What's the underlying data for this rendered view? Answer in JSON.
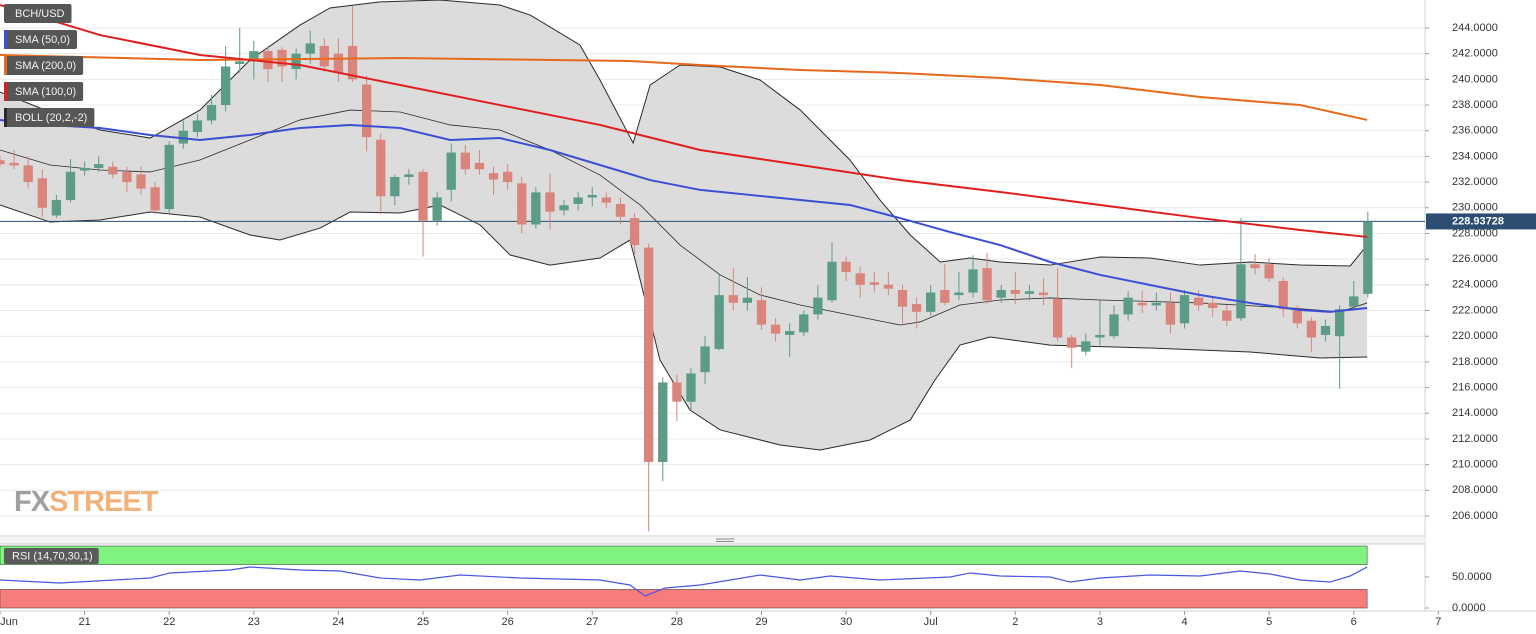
{
  "chart_data": [
    {
      "type": "candlestick",
      "title": "BCH/USD",
      "x": [
        0,
        4,
        8,
        12,
        16,
        20,
        24,
        28,
        32,
        36,
        40,
        44,
        48,
        52,
        56,
        60,
        64,
        68,
        72,
        76,
        80,
        84,
        88,
        92,
        96,
        100,
        104,
        108,
        112,
        116,
        120,
        124,
        128,
        132,
        136,
        140,
        144,
        148,
        152,
        156,
        160,
        164,
        168,
        172,
        176,
        180,
        184,
        188,
        192,
        196,
        200,
        204,
        208,
        212,
        216,
        220,
        224,
        228,
        232,
        236,
        240,
        244,
        248,
        252,
        256,
        260,
        264,
        268,
        272,
        276,
        280,
        284,
        288,
        292,
        296,
        300,
        304,
        308,
        312,
        316,
        320,
        324,
        328,
        332,
        336,
        340,
        344,
        348,
        352,
        356,
        360,
        364,
        368,
        372,
        376,
        380,
        384,
        388
      ],
      "open": [
        233.7,
        233.5,
        233.3,
        232.3,
        229.4,
        230.6,
        232.9,
        233.1,
        233.2,
        232.8,
        232.6,
        231.6,
        229.9,
        235.0,
        235.9,
        236.8,
        238.0,
        241.2,
        241.4,
        242.2,
        242.3,
        240.8,
        242.0,
        242.6,
        242.0,
        242.6,
        239.6,
        235.3,
        230.9,
        232.4,
        232.8,
        229.0,
        231.4,
        234.3,
        233.5,
        232.7,
        232.8,
        231.9,
        228.7,
        231.2,
        229.8,
        230.3,
        230.8,
        230.8,
        230.3,
        229.2,
        226.9,
        210.2,
        216.4,
        214.9,
        217.2,
        219.0,
        223.2,
        222.6,
        222.8,
        220.9,
        220.1,
        220.3,
        221.7,
        222.8,
        225.8,
        224.9,
        224.2,
        224.0,
        223.6,
        222.5,
        221.9,
        223.6,
        223.2,
        223.4,
        225.3,
        223.0,
        223.6,
        223.3,
        223.4,
        222.9,
        219.9,
        218.8,
        219.9,
        220.0,
        221.7,
        222.6,
        222.4,
        222.6,
        221.0,
        223.0,
        222.6,
        222.0,
        221.4,
        225.6,
        225.6,
        224.3,
        222.0,
        221.2,
        220.1,
        220.0,
        222.3,
        223.3
      ],
      "high": [
        234.0,
        234.5,
        234.0,
        233.0,
        231.0,
        233.8,
        233.6,
        234.0,
        233.6,
        233.2,
        233.2,
        232.0,
        235.2,
        236.8,
        237.3,
        238.8,
        242.6,
        244.0,
        243.0,
        242.6,
        242.5,
        242.4,
        243.8,
        243.2,
        243.2,
        245.7,
        240.3,
        235.8,
        232.6,
        233.0,
        233.0,
        231.2,
        235.0,
        234.9,
        234.5,
        233.2,
        233.4,
        232.4,
        231.6,
        232.7,
        230.6,
        231.2,
        231.6,
        231.2,
        230.8,
        229.6,
        227.2,
        216.8,
        217.0,
        217.5,
        220.0,
        224.8,
        225.3,
        224.6,
        223.8,
        221.4,
        221.0,
        222.0,
        224.0,
        227.3,
        226.2,
        225.4,
        225.0,
        225.0,
        224.0,
        223.0,
        224.0,
        225.6,
        225.0,
        226.3,
        226.5,
        224.0,
        225.0,
        224.0,
        224.5,
        225.3,
        220.1,
        220.2,
        222.8,
        222.4,
        223.5,
        223.5,
        223.4,
        223.4,
        223.6,
        223.6,
        223.0,
        222.4,
        229.2,
        226.4,
        226.1,
        224.6,
        222.4,
        221.5,
        221.3,
        222.4,
        224.3,
        229.7
      ],
      "low": [
        233.2,
        233.0,
        231.5,
        229.3,
        229.2,
        230.4,
        232.5,
        232.8,
        232.3,
        231.2,
        231.0,
        229.5,
        229.6,
        234.6,
        235.5,
        236.5,
        237.5,
        240.5,
        240.0,
        239.8,
        239.8,
        240.0,
        241.2,
        240.6,
        239.8,
        239.8,
        234.4,
        229.5,
        230.2,
        231.8,
        226.2,
        228.6,
        230.5,
        232.6,
        232.6,
        231.0,
        231.4,
        228.0,
        228.4,
        228.3,
        229.4,
        229.8,
        230.1,
        230.0,
        228.7,
        226.4,
        204.8,
        208.7,
        213.4,
        214.2,
        216.3,
        218.9,
        222.0,
        222.0,
        220.5,
        219.6,
        218.4,
        220.0,
        221.3,
        222.6,
        224.3,
        223.0,
        223.4,
        223.2,
        221.0,
        220.6,
        221.6,
        222.4,
        222.8,
        223.0,
        222.5,
        222.6,
        222.5,
        222.8,
        222.4,
        219.6,
        217.5,
        218.5,
        219.3,
        219.8,
        221.2,
        221.8,
        222.0,
        220.2,
        220.6,
        222.0,
        221.5,
        220.8,
        221.2,
        224.8,
        224.2,
        221.5,
        220.6,
        218.8,
        219.6,
        215.9,
        222.0,
        223.0
      ],
      "close": [
        233.4,
        233.3,
        232.0,
        230.0,
        230.6,
        232.8,
        233.1,
        233.4,
        232.6,
        232.0,
        231.5,
        229.8,
        234.9,
        236.0,
        236.8,
        238.0,
        241.0,
        241.4,
        242.2,
        240.8,
        241.0,
        242.0,
        242.8,
        241.0,
        240.5,
        240.0,
        235.5,
        230.9,
        232.4,
        232.6,
        229.0,
        230.8,
        234.3,
        233.0,
        233.0,
        232.2,
        232.0,
        228.7,
        231.2,
        229.7,
        230.2,
        230.8,
        231.0,
        230.4,
        229.3,
        227.1,
        210.2,
        216.4,
        214.9,
        217.1,
        219.2,
        223.2,
        222.6,
        223.0,
        220.9,
        220.2,
        220.4,
        221.7,
        223.0,
        225.8,
        225.0,
        224.0,
        224.0,
        223.7,
        222.3,
        221.9,
        223.4,
        222.6,
        223.4,
        225.2,
        222.8,
        223.6,
        223.3,
        223.5,
        223.2,
        219.9,
        219.1,
        219.6,
        220.1,
        221.7,
        223.0,
        222.4,
        222.6,
        220.9,
        223.2,
        222.4,
        222.2,
        221.2,
        225.6,
        225.3,
        224.5,
        222.1,
        221.0,
        219.9,
        220.8,
        222.1,
        223.1,
        228.93728
      ],
      "up_color": "#5c9b85",
      "down_color": "#d9857b",
      "xlim": [
        0,
        435.7
      ],
      "ylim": [
        204.52,
        246.18
      ],
      "yticks": [
        {
          "value": 206,
          "label": "206.0000"
        },
        {
          "value": 208,
          "label": "208.0000"
        },
        {
          "value": 210,
          "label": "210.0000"
        },
        {
          "value": 212,
          "label": "212.0000"
        },
        {
          "value": 214,
          "label": "214.0000"
        },
        {
          "value": 216,
          "label": "216.0000"
        },
        {
          "value": 218,
          "label": "218.0000"
        },
        {
          "value": 220,
          "label": "220.0000"
        },
        {
          "value": 222,
          "label": "222.0000"
        },
        {
          "value": 224,
          "label": "224.0000"
        },
        {
          "value": 226,
          "label": "226.0000"
        },
        {
          "value": 228,
          "label": "228.0000"
        },
        {
          "value": 230,
          "label": "230.0000"
        },
        {
          "value": 232,
          "label": "232.0000"
        },
        {
          "value": 234,
          "label": "234.0000"
        },
        {
          "value": 236,
          "label": "236.0000"
        },
        {
          "value": 238,
          "label": "238.0000"
        },
        {
          "value": 240,
          "label": "240.0000"
        },
        {
          "value": 242,
          "label": "242.0000"
        },
        {
          "value": 244,
          "label": "244.0000"
        }
      ],
      "grid": true,
      "last_price": 228.93728,
      "overlays": [
        {
          "name": "SMA (50,0)",
          "color": "#3a4fd6",
          "x": [
            0,
            14.2,
            28.4,
            42.6,
            56.7,
            70.9,
            85.1,
            99.3,
            113.5,
            127.7,
            141.8,
            156.0,
            170.2,
            184.4,
            198.6,
            212.8,
            227.0,
            241.1,
            255.3,
            269.5,
            283.7,
            297.9,
            312.1,
            326.2,
            340.4,
            354.6,
            368.8,
            377.3,
            387.8
          ],
          "values": [
            236.84,
            236.45,
            236.21,
            235.67,
            235.28,
            235.67,
            236.21,
            236.45,
            236.21,
            235.28,
            235.43,
            234.5,
            233.33,
            232.16,
            231.39,
            231.0,
            230.61,
            230.22,
            229.2,
            228.11,
            227.1,
            225.78,
            224.77,
            223.99,
            223.21,
            222.59,
            222.04,
            221.89,
            222.2
          ]
        },
        {
          "name": "SMA (200,0)",
          "color": "#e8691c",
          "x": [
            0,
            56.7,
            113.5,
            178.7,
            198.6,
            227.0,
            255.3,
            283.7,
            312.1,
            340.4,
            368.8,
            387.8
          ],
          "values": [
            241.9,
            241.51,
            241.66,
            241.43,
            241.12,
            240.73,
            240.5,
            240.11,
            239.56,
            238.63,
            238.0,
            236.84
          ]
        },
        {
          "name": "SMA (100,0)",
          "color": "#e01e1e",
          "x": [
            0,
            28.4,
            56.7,
            85.1,
            113.5,
            141.8,
            170.2,
            198.6,
            227.0,
            255.3,
            283.7,
            312.1,
            340.4,
            368.8,
            387.8
          ],
          "values": [
            245.79,
            243.45,
            241.9,
            241.12,
            239.56,
            238.0,
            236.45,
            234.5,
            233.33,
            232.16,
            231.23,
            230.22,
            229.2,
            228.27,
            227.73
          ]
        }
      ],
      "bollinger": {
        "name": "BOLL (20,2,-2)",
        "color": "#2a2a2a",
        "fill": "#d6d6d6",
        "upper": {
          "x": [
            0,
            14.2,
            28.4,
            42.6,
            56.7,
            70.9,
            85.1,
            93.6,
            107.8,
            124.8,
            141.8,
            150.4,
            164.5,
            170.2,
            179.6,
            184.4,
            192.9,
            204.3,
            215.6,
            227.0,
            241.1,
            249.6,
            258.2,
            266.7,
            275.2,
            283.7,
            297.9,
            312.1,
            326.2,
            340.4,
            354.6,
            368.8,
            383.0,
            387.8
          ],
          "values": [
            239.02,
            237.46,
            236.06,
            235.43,
            237.61,
            241.51,
            244.23,
            245.56,
            246.03,
            246.18,
            245.79,
            245.01,
            242.68,
            239.95,
            235.04,
            239.56,
            241.12,
            240.96,
            239.95,
            237.61,
            233.72,
            230.61,
            227.88,
            225.78,
            226.09,
            225.78,
            225.54,
            226.17,
            226.09,
            225.54,
            225.78,
            225.54,
            225.47,
            227.1
          ]
        },
        "middle": {
          "x": [
            0,
            14.2,
            28.4,
            42.6,
            56.7,
            70.9,
            85.1,
            99.3,
            113.5,
            127.7,
            141.8,
            156.0,
            170.2,
            181.6,
            192.9,
            204.3,
            215.6,
            227.0,
            241.1,
            255.3,
            261.0,
            272.3,
            283.7,
            297.9,
            312.1,
            340.4,
            366.0,
            380.1,
            387.8
          ],
          "values": [
            234.5,
            233.33,
            232.94,
            232.79,
            233.72,
            235.28,
            236.84,
            237.61,
            237.46,
            236.45,
            236.06,
            234.5,
            232.55,
            230.22,
            227.1,
            224.77,
            223.21,
            222.43,
            221.65,
            220.87,
            221.11,
            222.43,
            222.82,
            222.98,
            222.82,
            222.59,
            222.2,
            221.89,
            222.59
          ]
        },
        "lower": {
          "x": [
            0,
            14.2,
            28.4,
            42.6,
            56.7,
            70.9,
            79.4,
            90.8,
            99.3,
            113.5,
            124.8,
            136.2,
            144.7,
            156.0,
            170.2,
            178.7,
            181.6,
            187.2,
            195.7,
            204.3,
            221.3,
            232.6,
            246.8,
            258.2,
            265.2,
            272.3,
            280.9,
            297.9,
            326.2,
            354.6,
            374.5,
            387.8
          ],
          "values": [
            230.22,
            228.89,
            229.05,
            229.67,
            229.28,
            227.88,
            227.49,
            228.42,
            229.67,
            229.59,
            230.22,
            228.66,
            226.32,
            225.54,
            226.09,
            227.49,
            224.38,
            218.15,
            214.25,
            212.7,
            211.53,
            211.14,
            211.92,
            213.47,
            216.59,
            219.31,
            219.94,
            219.31,
            219.08,
            218.77,
            218.3,
            218.38
          ]
        }
      },
      "watermark": [
        "FX",
        "STREET"
      ]
    },
    {
      "type": "line",
      "title": "RSI (14,70,30,1)",
      "color": "#4658e0",
      "x": [
        0,
        17.0,
        42.6,
        48.2,
        65.2,
        70.9,
        85.1,
        96.5,
        107.8,
        119.1,
        130.5,
        147.5,
        170.2,
        178.7,
        183.0,
        188.7,
        198.6,
        215.6,
        227.0,
        235.5,
        249.6,
        269.5,
        275.2,
        283.7,
        297.9,
        303.5,
        312.1,
        326.2,
        340.4,
        351.8,
        360.3,
        368.8,
        377.3,
        383.0,
        387.8
      ],
      "values": [
        45.2,
        40.3,
        48.4,
        56.5,
        61.3,
        66.1,
        61.3,
        59.7,
        48.4,
        45.2,
        53.2,
        48.4,
        45.2,
        37.1,
        19.4,
        32.3,
        37.1,
        53.2,
        45.2,
        51.6,
        45.2,
        50.0,
        56.5,
        51.6,
        50.0,
        41.9,
        48.4,
        53.2,
        51.6,
        59.7,
        54.8,
        45.2,
        41.9,
        51.6,
        66.1
      ],
      "xlim": [
        0,
        435.7
      ],
      "xticks": [
        {
          "value": 0,
          "label": "Jun"
        },
        {
          "value": 24,
          "label": "21"
        },
        {
          "value": 48,
          "label": "22"
        },
        {
          "value": 72,
          "label": "23"
        },
        {
          "value": 96,
          "label": "24"
        },
        {
          "value": 120,
          "label": "25"
        },
        {
          "value": 144,
          "label": "26"
        },
        {
          "value": 168,
          "label": "27"
        },
        {
          "value": 192,
          "label": "28"
        },
        {
          "value": 216,
          "label": "29"
        },
        {
          "value": 240,
          "label": "30"
        },
        {
          "value": 264,
          "label": "Jul"
        },
        {
          "value": 288,
          "label": "2"
        },
        {
          "value": 312,
          "label": "3"
        },
        {
          "value": 336,
          "label": "4"
        },
        {
          "value": 360,
          "label": "5"
        },
        {
          "value": 384,
          "label": "6"
        },
        {
          "value": 408,
          "label": "7"
        }
      ],
      "ylim": [
        -3.2,
        101.6
      ],
      "yticks": [
        {
          "value": 50,
          "label": "50.0000"
        },
        {
          "value": 0,
          "label": "0.0000"
        }
      ],
      "bands": [
        {
          "from": 70,
          "to": 100,
          "color": "#7ff27f"
        },
        {
          "from": 0,
          "to": 30,
          "color": "#f77c7c"
        }
      ]
    }
  ]
}
